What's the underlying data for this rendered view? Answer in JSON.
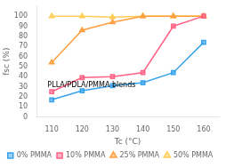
{
  "chart_data": {
    "type": "line",
    "x": [
      110,
      120,
      130,
      140,
      150,
      160
    ],
    "series": [
      {
        "name": "0% PMMA",
        "values": [
          17,
          26,
          31,
          34,
          44,
          74
        ],
        "marker": "square"
      },
      {
        "name": "10% PMMA",
        "values": [
          25,
          39,
          40,
          44,
          90,
          100
        ],
        "marker": "square"
      },
      {
        "name": "25% PMMA",
        "values": [
          54,
          86,
          94,
          100,
          100,
          100
        ],
        "marker": "triangle"
      },
      {
        "name": "50% PMMA",
        "values": [
          100,
          100,
          99,
          100,
          100,
          100
        ],
        "marker": "triangle"
      }
    ],
    "xlabel": "Tc (°C)",
    "ylabel": "fsc (%)",
    "annotation": "PLLA/PDLA/PMMA blends",
    "xlim": [
      105,
      165
    ],
    "ylim": [
      0,
      110
    ],
    "xticks": [
      110,
      120,
      130,
      140,
      150,
      160
    ],
    "yticks": [
      0,
      10,
      20,
      30,
      40,
      50,
      60,
      70,
      80,
      90,
      100
    ],
    "grid": false,
    "legend": "bottom"
  }
}
